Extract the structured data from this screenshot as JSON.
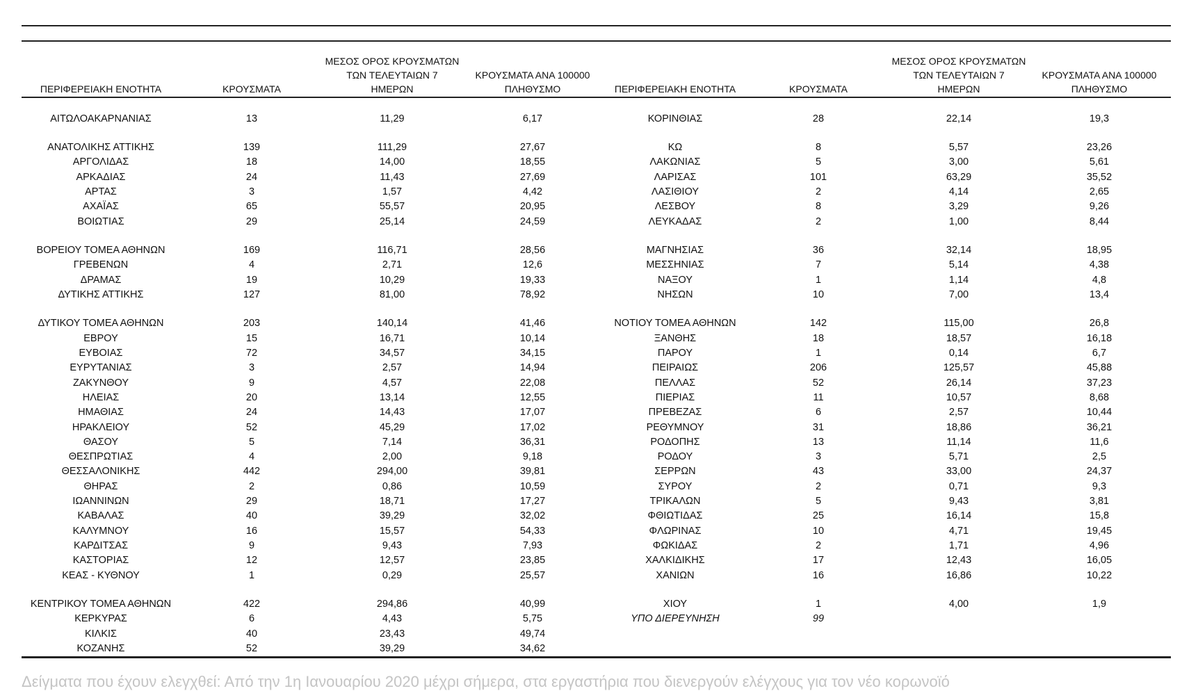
{
  "table": {
    "columns": [
      [
        "ΠΕΡΙΦΕΡΕΙΑΚΗ ΕΝΟΤΗΤΑ"
      ],
      [
        "ΚΡΟΥΣΜΑΤΑ"
      ],
      [
        "ΜΕΣΟΣ ΟΡΟΣ ΚΡΟΥΣΜΑΤΩΝ",
        "ΤΩΝ ΤΕΛΕΥΤΑΙΩΝ 7",
        "ΗΜΕΡΩΝ"
      ],
      [
        "ΚΡΟΥΣΜΑΤΑ ΑΝΑ 100000",
        "ΠΛΗΘΥΣΜΟ"
      ]
    ],
    "left": [
      [
        [
          "ΑΙΤΩΛΟΑΚΑΡΝΑΝΙΑΣ",
          "13",
          "11,29",
          "6,17"
        ]
      ],
      [
        [
          "ΑΝΑΤΟΛΙΚΗΣ ΑΤΤΙΚΗΣ",
          "139",
          "111,29",
          "27,67"
        ],
        [
          "ΑΡΓΟΛΙΔΑΣ",
          "18",
          "14,00",
          "18,55"
        ],
        [
          "ΑΡΚΑΔΙΑΣ",
          "24",
          "11,43",
          "27,69"
        ],
        [
          "ΑΡΤΑΣ",
          "3",
          "1,57",
          "4,42"
        ],
        [
          "ΑΧΑΪΑΣ",
          "65",
          "55,57",
          "20,95"
        ],
        [
          "ΒΟΙΩΤΙΑΣ",
          "29",
          "25,14",
          "24,59"
        ]
      ],
      [
        [
          "ΒΟΡΕΙΟΥ ΤΟΜΕΑ ΑΘΗΝΩΝ",
          "169",
          "116,71",
          "28,56"
        ],
        [
          "ΓΡΕΒΕΝΩΝ",
          "4",
          "2,71",
          "12,6"
        ],
        [
          "ΔΡΑΜΑΣ",
          "19",
          "10,29",
          "19,33"
        ],
        [
          "ΔΥΤΙΚΗΣ ΑΤΤΙΚΗΣ",
          "127",
          "81,00",
          "78,92"
        ]
      ],
      [
        [
          "ΔΥΤΙΚΟΥ ΤΟΜΕΑ ΑΘΗΝΩΝ",
          "203",
          "140,14",
          "41,46"
        ],
        [
          "ΕΒΡΟΥ",
          "15",
          "16,71",
          "10,14"
        ],
        [
          "ΕΥΒΟΙΑΣ",
          "72",
          "34,57",
          "34,15"
        ],
        [
          "ΕΥΡΥΤΑΝΙΑΣ",
          "3",
          "2,57",
          "14,94"
        ],
        [
          "ΖΑΚΥΝΘΟΥ",
          "9",
          "4,57",
          "22,08"
        ],
        [
          "ΗΛΕΙΑΣ",
          "20",
          "13,14",
          "12,55"
        ],
        [
          "ΗΜΑΘΙΑΣ",
          "24",
          "14,43",
          "17,07"
        ],
        [
          "ΗΡΑΚΛΕΙΟΥ",
          "52",
          "45,29",
          "17,02"
        ],
        [
          "ΘΑΣΟΥ",
          "5",
          "7,14",
          "36,31"
        ],
        [
          "ΘΕΣΠΡΩΤΙΑΣ",
          "4",
          "2,00",
          "9,18"
        ],
        [
          "ΘΕΣΣΑΛΟΝΙΚΗΣ",
          "442",
          "294,00",
          "39,81"
        ],
        [
          "ΘΗΡΑΣ",
          "2",
          "0,86",
          "10,59"
        ],
        [
          "ΙΩΑΝΝΙΝΩΝ",
          "29",
          "18,71",
          "17,27"
        ],
        [
          "ΚΑΒΑΛΑΣ",
          "40",
          "39,29",
          "32,02"
        ],
        [
          "ΚΑΛΥΜΝΟΥ",
          "16",
          "15,57",
          "54,33"
        ],
        [
          "ΚΑΡΔΙΤΣΑΣ",
          "9",
          "9,43",
          "7,93"
        ],
        [
          "ΚΑΣΤΟΡΙΑΣ",
          "12",
          "12,57",
          "23,85"
        ],
        [
          "ΚΕΑΣ - ΚΥΘΝΟΥ",
          "1",
          "0,29",
          "25,57"
        ]
      ],
      [
        [
          "ΚΕΝΤΡΙΚΟΥ ΤΟΜΕΑ ΑΘΗΝΩΝ",
          "422",
          "294,86",
          "40,99"
        ],
        [
          "ΚΕΡΚΥΡΑΣ",
          "6",
          "4,43",
          "5,75"
        ],
        [
          "ΚΙΛΚΙΣ",
          "40",
          "23,43",
          "49,74"
        ],
        [
          "ΚΟΖΑΝΗΣ",
          "52",
          "39,29",
          "34,62"
        ]
      ]
    ],
    "right": [
      [
        [
          "ΚΟΡΙΝΘΙΑΣ",
          "28",
          "22,14",
          "19,3"
        ]
      ],
      [
        [
          "ΚΩ",
          "8",
          "5,57",
          "23,26"
        ],
        [
          "ΛΑΚΩΝΙΑΣ",
          "5",
          "3,00",
          "5,61"
        ],
        [
          "ΛΑΡΙΣΑΣ",
          "101",
          "63,29",
          "35,52"
        ],
        [
          "ΛΑΣΙΘΙΟΥ",
          "2",
          "4,14",
          "2,65"
        ],
        [
          "ΛΕΣΒΟΥ",
          "8",
          "3,29",
          "9,26"
        ],
        [
          "ΛΕΥΚΑΔΑΣ",
          "2",
          "1,00",
          "8,44"
        ]
      ],
      [
        [
          "ΜΑΓΝΗΣΙΑΣ",
          "36",
          "32,14",
          "18,95"
        ],
        [
          "ΜΕΣΣΗΝΙΑΣ",
          "7",
          "5,14",
          "4,38"
        ],
        [
          "ΝΑΞΟΥ",
          "1",
          "1,14",
          "4,8"
        ],
        [
          "ΝΗΣΩΝ",
          "10",
          "7,00",
          "13,4"
        ]
      ],
      [
        [
          "ΝΟΤΙΟΥ ΤΟΜΕΑ ΑΘΗΝΩΝ",
          "142",
          "115,00",
          "26,8"
        ],
        [
          "ΞΑΝΘΗΣ",
          "18",
          "18,57",
          "16,18"
        ],
        [
          "ΠΑΡΟΥ",
          "1",
          "0,14",
          "6,7"
        ],
        [
          "ΠΕΙΡΑΙΩΣ",
          "206",
          "125,57",
          "45,88"
        ],
        [
          "ΠΕΛΛΑΣ",
          "52",
          "26,14",
          "37,23"
        ],
        [
          "ΠΙΕΡΙΑΣ",
          "11",
          "10,57",
          "8,68"
        ],
        [
          "ΠΡΕΒΕΖΑΣ",
          "6",
          "2,57",
          "10,44"
        ],
        [
          "ΡΕΘΥΜΝΟΥ",
          "31",
          "18,86",
          "36,21"
        ],
        [
          "ΡΟΔΟΠΗΣ",
          "13",
          "11,14",
          "11,6"
        ],
        [
          "ΡΟΔΟΥ",
          "3",
          "5,71",
          "2,5"
        ],
        [
          "ΣΕΡΡΩΝ",
          "43",
          "33,00",
          "24,37"
        ],
        [
          "ΣΥΡΟΥ",
          "2",
          "0,71",
          "9,3"
        ],
        [
          "ΤΡΙΚΑΛΩΝ",
          "5",
          "9,43",
          "3,81"
        ],
        [
          "ΦΘΙΩΤΙΔΑΣ",
          "25",
          "16,14",
          "15,8"
        ],
        [
          "ΦΛΩΡΙΝΑΣ",
          "10",
          "4,71",
          "19,45"
        ],
        [
          "ΦΩΚΙΔΑΣ",
          "2",
          "1,71",
          "4,96"
        ],
        [
          "ΧΑΛΚΙΔΙΚΗΣ",
          "17",
          "12,43",
          "16,05"
        ],
        [
          "ΧΑΝΙΩΝ",
          "16",
          "16,86",
          "10,22"
        ]
      ],
      [
        [
          "ΧΙΟΥ",
          "1",
          "4,00",
          "1,9"
        ],
        [
          "ΥΠΟ ΔΙΕΡΕΥΝΗΣΗ",
          "99"
        ]
      ]
    ]
  },
  "footer": "Δείγματα που έχουν ελεγχθεί: Από την 1η Ιανουαρίου 2020 μέχρι σήμερα, στα εργαστήρια που διενεργούν ελέγχους για τον νέο κορωνοϊό"
}
